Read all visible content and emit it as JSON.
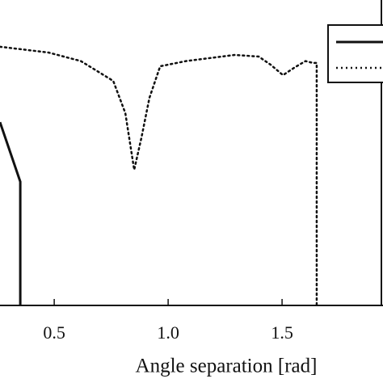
{
  "chart_data": {
    "type": "line",
    "x_label": "Angle separation [rad]",
    "xlim": [
      0.262,
      1.943
    ],
    "ylim": [
      0,
      1
    ],
    "xticks": [
      0.5,
      {
        "value": 1,
        "label": "1.0"
      },
      1.5
    ],
    "series": [
      {
        "color": "#111111",
        "dash": "solid",
        "x": [
          0.262,
          0.351,
          0.351
        ],
        "values": [
          0.6,
          0.405,
          0.0
        ]
      },
      {
        "color": "#111111",
        "dash": "dotted",
        "x": [
          0.262,
          0.475,
          0.617,
          0.759,
          0.812,
          0.851,
          0.883,
          0.918,
          0.965,
          1.078,
          1.184,
          1.291,
          1.397,
          1.45,
          1.504,
          1.557,
          1.603,
          1.635,
          1.652,
          1.652
        ],
        "values": [
          0.847,
          0.828,
          0.8,
          0.735,
          0.63,
          0.444,
          0.55,
          0.68,
          0.783,
          0.8,
          0.81,
          0.82,
          0.815,
          0.788,
          0.754,
          0.78,
          0.8,
          0.794,
          0.794,
          0.0
        ]
      }
    ],
    "legend": "upper right"
  }
}
